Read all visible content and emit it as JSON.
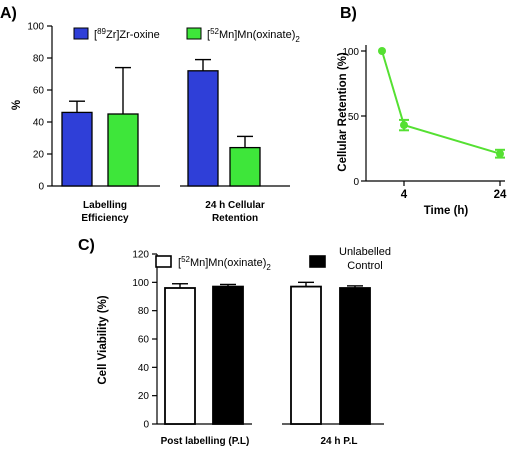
{
  "colors": {
    "zr": "#2f3fd8",
    "mn": "#3ee63a",
    "retention": "#55e032",
    "unlabelled": "#000000",
    "mn_c": "#ffffff"
  },
  "panels": {
    "a": "A)",
    "b": "B)",
    "c": "C)"
  },
  "chart_data": [
    {
      "panel": "A)",
      "type": "bar",
      "ylabel": "%",
      "ylim": [
        0,
        100
      ],
      "yticks": [
        "0",
        "20",
        "40",
        "60",
        "80",
        "100"
      ],
      "categories": [
        {
          "line1": "Labelling",
          "line2": "Efficiency"
        },
        {
          "line1": "24 h Cellular",
          "line2": "Retention"
        }
      ],
      "series": [
        {
          "name": "[89Zr]Zr-oxine",
          "values": [
            46,
            72
          ],
          "errors": [
            7,
            7
          ]
        },
        {
          "name": "[52Mn]Mn(oxinate)2",
          "values": [
            45,
            24
          ],
          "errors": [
            29,
            7
          ]
        }
      ],
      "legend": {
        "zr_sup": "89",
        "zr_main": "Zr]Zr-oxine",
        "mn_sup": "52",
        "mn_main": "Mn]Mn(oxinate)",
        "mn_sub": "2"
      }
    },
    {
      "panel": "B)",
      "type": "line",
      "ylabel": "Cellular Retention (%)",
      "xlabel": "Time (h)",
      "ylim": [
        0,
        100
      ],
      "yticks": [
        "0",
        "50",
        "100"
      ],
      "xticks": [
        "4",
        "24"
      ],
      "points": [
        {
          "x": 0,
          "y": 100,
          "err": 0
        },
        {
          "x": 4,
          "y": 43,
          "err": 4
        },
        {
          "x": 24,
          "y": 21,
          "err": 3
        }
      ]
    },
    {
      "panel": "C)",
      "type": "bar",
      "ylabel": "Cell Viability (%)",
      "ylim": [
        0,
        120
      ],
      "yticks": [
        "0",
        "20",
        "40",
        "60",
        "80",
        "100",
        "120"
      ],
      "categories": [
        "Post labelling (P.L)",
        "24 h P.L"
      ],
      "series": [
        {
          "name": "[52Mn]Mn(oxinate)2",
          "values": [
            96,
            97
          ],
          "errors": [
            3,
            3
          ]
        },
        {
          "name": "Unlabelled Control",
          "values": [
            97,
            96
          ],
          "errors": [
            1.5,
            1.5
          ]
        }
      ],
      "legend": {
        "mn_sup": "52",
        "mn_main": "Mn]Mn(oxinate)",
        "mn_sub": "2",
        "ctrl_line1": "Unlabelled",
        "ctrl_line2": "Control"
      }
    }
  ]
}
